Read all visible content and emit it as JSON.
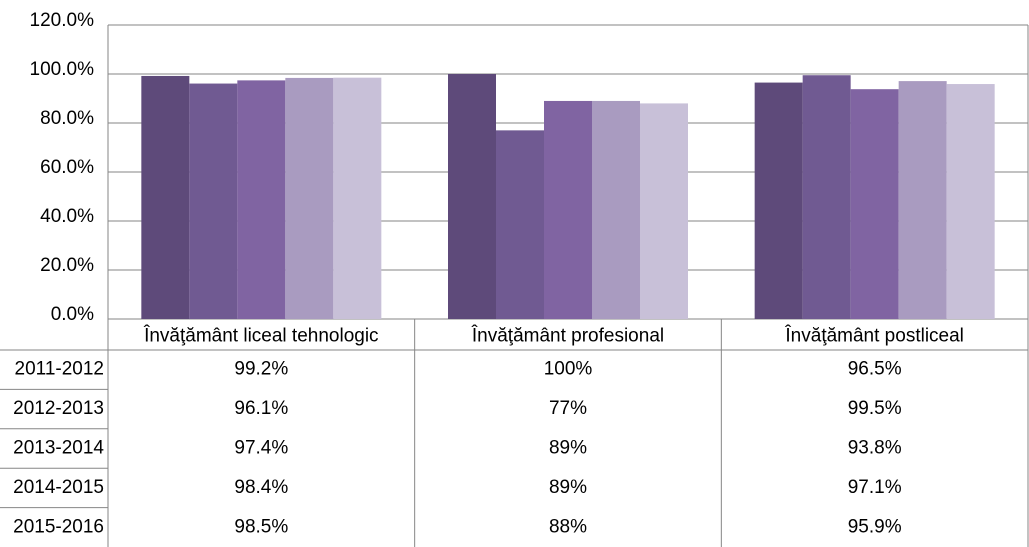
{
  "chart_data": {
    "type": "bar",
    "categories": [
      "Învăţământ liceal tehnologic",
      "Învăţământ profesional",
      "Învăţământ postliceal"
    ],
    "series": [
      {
        "name": "2011-2012",
        "color": "#5e4a7a",
        "values": [
          99.2,
          100,
          96.5
        ],
        "value_labels": [
          "99.2%",
          "100%",
          "96.5%"
        ]
      },
      {
        "name": "2012-2013",
        "color": "#705a92",
        "values": [
          96.1,
          77,
          99.5
        ],
        "value_labels": [
          "96.1%",
          "77%",
          "99.5%"
        ]
      },
      {
        "name": "2013-2014",
        "color": "#8064a2",
        "values": [
          97.4,
          89,
          93.8
        ],
        "value_labels": [
          "97.4%",
          "89%",
          "93.8%"
        ]
      },
      {
        "name": "2014-2015",
        "color": "#a99bc0",
        "values": [
          98.4,
          89,
          97.1
        ],
        "value_labels": [
          "98.4%",
          "89%",
          "97.1%"
        ]
      },
      {
        "name": "2015-2016",
        "color": "#c8c0d8",
        "values": [
          98.5,
          88,
          95.9
        ],
        "value_labels": [
          "98.5%",
          "88%",
          "95.9%"
        ]
      }
    ],
    "ylim": [
      0,
      120
    ],
    "yticks": [
      {
        "value": 0,
        "label": "0.0%"
      },
      {
        "value": 20,
        "label": "20.0%"
      },
      {
        "value": 40,
        "label": "40.0%"
      },
      {
        "value": 60,
        "label": "60.0%"
      },
      {
        "value": 80,
        "label": "80.0%"
      },
      {
        "value": 100,
        "label": "100.0%"
      },
      {
        "value": 120,
        "label": "120.0%"
      }
    ],
    "grid": true
  }
}
